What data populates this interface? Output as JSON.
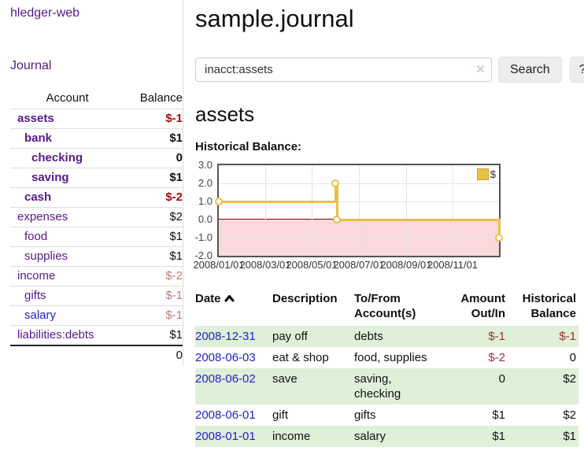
{
  "app": {
    "title": "hledger-web"
  },
  "nav": {
    "journal_label": "Journal"
  },
  "sidebar": {
    "accounts_table": {
      "headers": {
        "account": "Account",
        "balance": "Balance"
      },
      "rows": [
        {
          "name": "assets",
          "balance": "$-1",
          "depth": 1,
          "bold": true,
          "neg": "strong",
          "link": "purple"
        },
        {
          "name": "bank",
          "balance": "$1",
          "depth": 2,
          "bold": true,
          "neg": "none",
          "link": "purple"
        },
        {
          "name": "checking",
          "balance": "0",
          "depth": 3,
          "bold": true,
          "neg": "none",
          "link": "purple"
        },
        {
          "name": "saving",
          "balance": "$1",
          "depth": 3,
          "bold": true,
          "neg": "none",
          "link": "purple"
        },
        {
          "name": "cash",
          "balance": "$-2",
          "depth": 2,
          "bold": true,
          "neg": "strong",
          "link": "purple"
        },
        {
          "name": "expenses",
          "balance": "$2",
          "depth": 1,
          "bold": false,
          "neg": "none",
          "link": "purple"
        },
        {
          "name": "food",
          "balance": "$1",
          "depth": 2,
          "bold": false,
          "neg": "none",
          "link": "purple"
        },
        {
          "name": "supplies",
          "balance": "$1",
          "depth": 2,
          "bold": false,
          "neg": "none",
          "link": "purple"
        },
        {
          "name": "income",
          "balance": "$-2",
          "depth": 1,
          "bold": false,
          "neg": "soft",
          "link": "purple"
        },
        {
          "name": "gifts",
          "balance": "$-1",
          "depth": 2,
          "bold": false,
          "neg": "soft",
          "link": "purple"
        },
        {
          "name": "salary",
          "balance": "$-1",
          "depth": 2,
          "bold": false,
          "neg": "soft",
          "link": "blue"
        },
        {
          "name": "liabilities:debts",
          "balance": "$1",
          "depth": 1,
          "bold": false,
          "neg": "none",
          "link": "purple"
        }
      ],
      "total": "0"
    }
  },
  "header": {
    "title": "sample.journal"
  },
  "search": {
    "value": "inacct:assets",
    "clear_icon": "✕",
    "button_label": "Search",
    "help_label": "?"
  },
  "account_page": {
    "heading": "assets",
    "chart_label": "Historical Balance:"
  },
  "chart_data": {
    "type": "line",
    "step": true,
    "title": "Historical Balance:",
    "series": [
      {
        "name": "$",
        "color": "#e9c046",
        "points": [
          {
            "date": "2008-01-01",
            "balance": 1
          },
          {
            "date": "2008-06-01",
            "balance": 2
          },
          {
            "date": "2008-06-03",
            "balance": 0
          },
          {
            "date": "2008-12-31",
            "balance": -1
          }
        ]
      }
    ],
    "x_range": [
      "2008-01-01",
      "2008-12-31"
    ],
    "x_ticks": [
      "2008/01/01",
      "2008/03/01",
      "2008/05/01",
      "2008/07/01",
      "2008/09/01",
      "2008/11/01"
    ],
    "y_ticks": [
      "3.0",
      "2.0",
      "1.0",
      "0.0",
      "-1.0",
      "-2.0"
    ],
    "ylim": [
      -2,
      3
    ],
    "grid": true,
    "negative_region_color": "#f9d9d9",
    "zero_line_color": "#8b0000",
    "legend": {
      "label": "$",
      "position": "top-right"
    }
  },
  "register_table": {
    "headers": [
      {
        "label": "Date",
        "sorted": "asc"
      },
      {
        "label": "Description"
      },
      {
        "label": "To/From Account(s)"
      },
      {
        "label": "Amount Out/In",
        "align": "right"
      },
      {
        "label": "Historical Balance",
        "align": "right"
      }
    ],
    "rows": [
      {
        "date": "2008-12-31",
        "description": "pay off",
        "accounts": "debts",
        "amount": "$-1",
        "balance": "$-1",
        "amount_neg": true,
        "balance_neg": true
      },
      {
        "date": "2008-06-03",
        "description": "eat & shop",
        "accounts": "food, supplies",
        "amount": "$-2",
        "balance": "0",
        "amount_neg": true,
        "balance_neg": false
      },
      {
        "date": "2008-06-02",
        "description": "save",
        "accounts": "saving, checking",
        "amount": "0",
        "balance": "$2",
        "amount_neg": false,
        "balance_neg": false
      },
      {
        "date": "2008-06-01",
        "description": "gift",
        "accounts": "gifts",
        "amount": "$1",
        "balance": "$2",
        "amount_neg": false,
        "balance_neg": false
      },
      {
        "date": "2008-01-01",
        "description": "income",
        "accounts": "salary",
        "amount": "$1",
        "balance": "$1",
        "amount_neg": false,
        "balance_neg": false
      }
    ]
  }
}
